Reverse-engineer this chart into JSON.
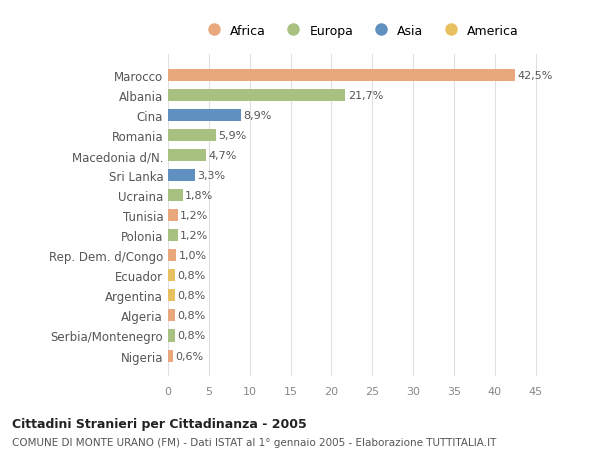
{
  "categories": [
    "Nigeria",
    "Serbia/Montenegro",
    "Algeria",
    "Argentina",
    "Ecuador",
    "Rep. Dem. d/Congo",
    "Polonia",
    "Tunisia",
    "Ucraina",
    "Sri Lanka",
    "Macedonia d/N.",
    "Romania",
    "Cina",
    "Albania",
    "Marocco"
  ],
  "values": [
    0.6,
    0.8,
    0.8,
    0.8,
    0.8,
    1.0,
    1.2,
    1.2,
    1.8,
    3.3,
    4.7,
    5.9,
    8.9,
    21.7,
    42.5
  ],
  "labels": [
    "0,6%",
    "0,8%",
    "0,8%",
    "0,8%",
    "0,8%",
    "1,0%",
    "1,2%",
    "1,2%",
    "1,8%",
    "3,3%",
    "4,7%",
    "5,9%",
    "8,9%",
    "21,7%",
    "42,5%"
  ],
  "colors": [
    "#e8a87c",
    "#a8c080",
    "#e8a87c",
    "#e8c060",
    "#e8c060",
    "#e8a87c",
    "#a8c080",
    "#e8a87c",
    "#a8c080",
    "#6090c0",
    "#a8c080",
    "#a8c080",
    "#6090c0",
    "#a8c080",
    "#e8a87c"
  ],
  "continent_colors": {
    "Africa": "#e8a87c",
    "Europa": "#a8c080",
    "Asia": "#6090c0",
    "America": "#e8c060"
  },
  "title_bold": "Cittadini Stranieri per Cittadinanza - 2005",
  "subtitle": "COMUNE DI MONTE URANO (FM) - Dati ISTAT al 1° gennaio 2005 - Elaborazione TUTTITALIA.IT",
  "xlim": [
    0,
    47
  ],
  "xticks": [
    0,
    5,
    10,
    15,
    20,
    25,
    30,
    35,
    40,
    45
  ],
  "background_color": "#ffffff",
  "grid_color": "#e0e0e0"
}
